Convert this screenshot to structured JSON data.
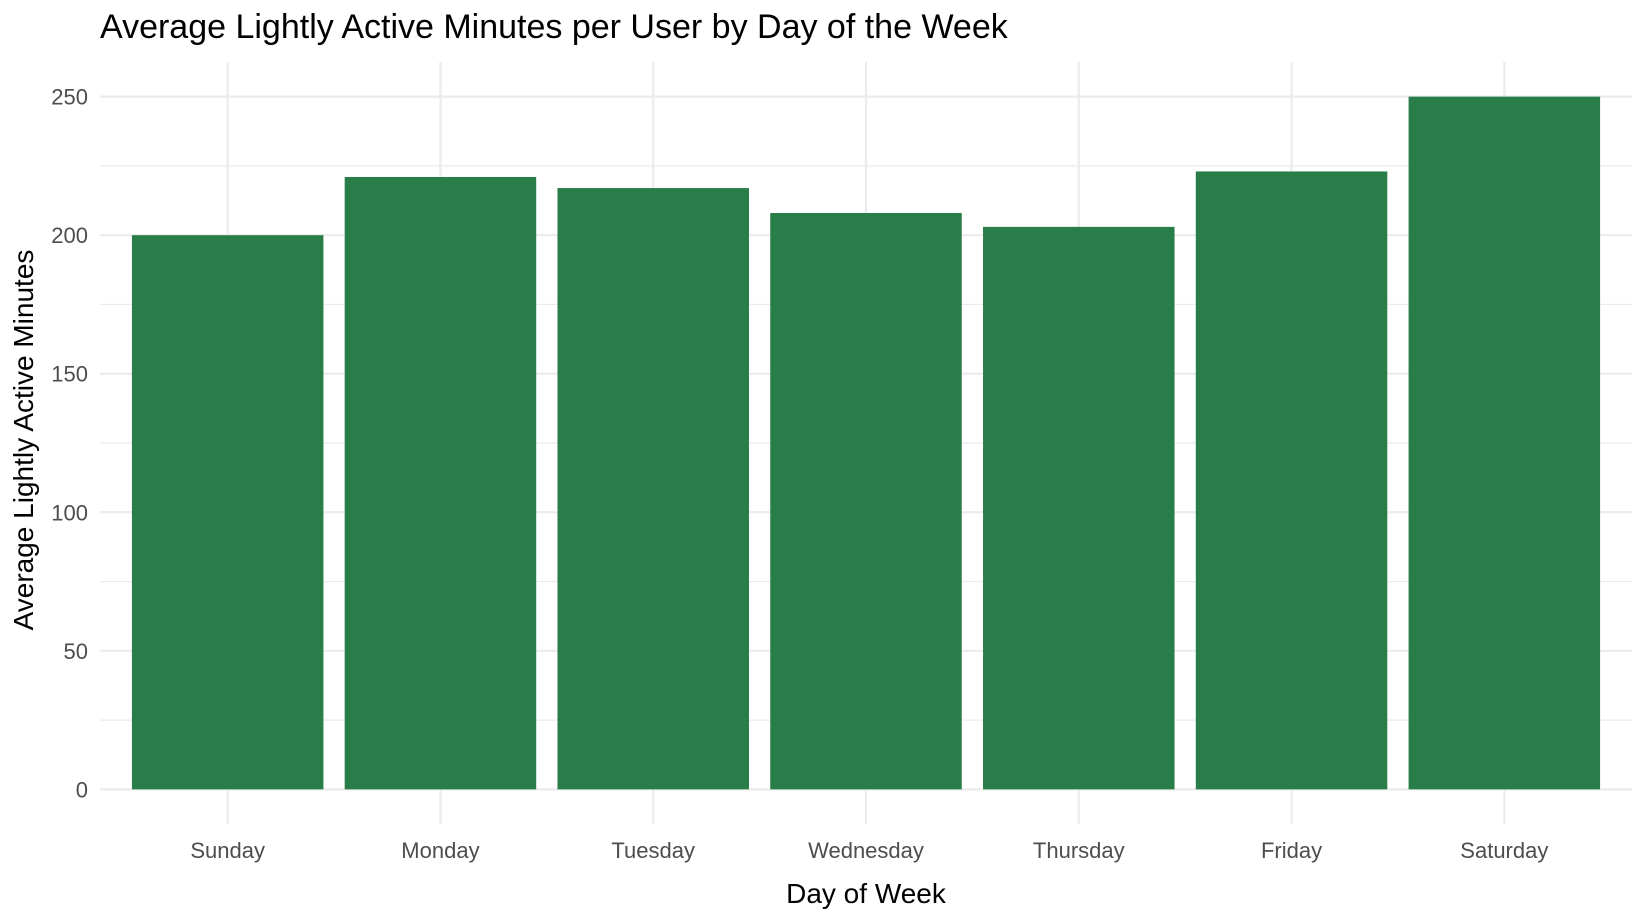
{
  "chart_data": {
    "type": "bar",
    "title": "Average Lightly Active Minutes per User by Day of the Week",
    "xlabel": "Day of Week",
    "ylabel": "Average Lightly Active Minutes",
    "categories": [
      "Sunday",
      "Monday",
      "Tuesday",
      "Wednesday",
      "Thursday",
      "Friday",
      "Saturday"
    ],
    "values": [
      200,
      221,
      217,
      208,
      203,
      223,
      250
    ],
    "ylim": [
      -12.5,
      262.5
    ],
    "yticks": [
      0,
      50,
      100,
      150,
      200,
      250
    ],
    "yticks_minor": [
      25,
      75,
      125,
      175,
      225
    ],
    "ytick_labels": [
      "0",
      "50",
      "100",
      "150",
      "200",
      "250"
    ],
    "grid": true,
    "legend": "none",
    "bar_color": "#287D48",
    "grid_color": "#EBEBEB"
  }
}
